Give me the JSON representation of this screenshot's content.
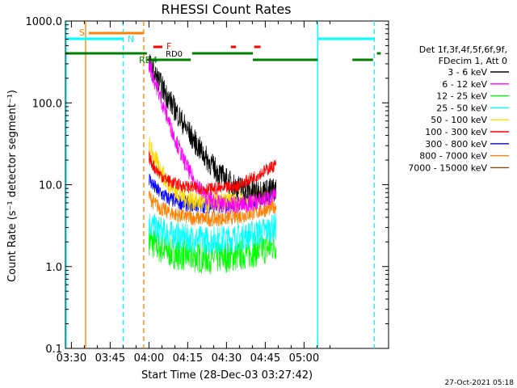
{
  "chart_data": {
    "type": "line",
    "title": "RHESSI Count Rates",
    "xlabel": "Start Time (28-Dec-03 03:27:42)",
    "ylabel": "Count Rate (s⁻¹ detector segment⁻¹)",
    "yscale": "log",
    "ylim": [
      0.1,
      1000
    ],
    "xlim_minutes": [
      0,
      125
    ],
    "x_tick_labels": [
      "03:30",
      "03:45",
      "04:00",
      "04:15",
      "04:30",
      "04:45",
      "05:00"
    ],
    "x_tick_minutes": [
      2.3,
      17.3,
      32.3,
      47.3,
      62.3,
      77.3,
      92.3
    ],
    "y_tick_labels": [
      "0.1",
      "1.0",
      "10.0",
      "100.0",
      "1000.0"
    ],
    "y_tick_values": [
      0.1,
      1,
      10,
      100,
      1000
    ],
    "legend_header": [
      "Det 1f,3f,4f,5f,6f,9f,",
      "FDecim 1, Att 0"
    ],
    "series": [
      {
        "name": "3 - 6 keV",
        "color": "#000000",
        "start": 300,
        "peak": 300,
        "decay": 7.5,
        "base": 7.0
      },
      {
        "name": "6 - 12 keV",
        "color": "#ff00ff",
        "start": 300,
        "peak": 300,
        "decay": 4.5,
        "base": 6.0
      },
      {
        "name": "12 - 25 keV",
        "color": "#00ff00",
        "start": 1.9,
        "peak": 1.9,
        "decay": 0,
        "base": 1.5
      },
      {
        "name": "25 - 50 keV",
        "color": "#00ffff",
        "start": 3.0,
        "peak": 3.0,
        "decay": 0,
        "base": 2.5
      },
      {
        "name": "50 - 100 keV",
        "color": "#ffd700",
        "start": 30,
        "peak": 30,
        "decay": 4.0,
        "base": 7.0
      },
      {
        "name": "100 - 300 keV",
        "color": "#ff0000",
        "start": 20,
        "peak": 20,
        "decay": 0,
        "base": 10.5
      },
      {
        "name": "300 - 800 keV",
        "color": "#0000ff",
        "start": 11,
        "peak": 11,
        "decay": 0,
        "base": 6.5
      },
      {
        "name": "800 - 7000 keV",
        "color": "#ff7f00",
        "start": 6.5,
        "peak": 6.5,
        "decay": 0,
        "base": 4.5
      },
      {
        "name": "7000 - 15000 keV",
        "color": "#8b4513",
        "start": null,
        "peak": null,
        "decay": 0,
        "base": null
      }
    ],
    "data_window_minutes": [
      32.3,
      81.5
    ],
    "annotations": {
      "saa_label": "S",
      "night_label": "N",
      "flare_label": "F",
      "rd0_label": "RD0",
      "rd4_label": "RD4",
      "saa_color": "#ff7f00",
      "night_color": "#00ffff",
      "flare_color": "#ff0000",
      "decim_color": "#008000"
    },
    "footer_date": "27-Oct-2021 05:18"
  }
}
